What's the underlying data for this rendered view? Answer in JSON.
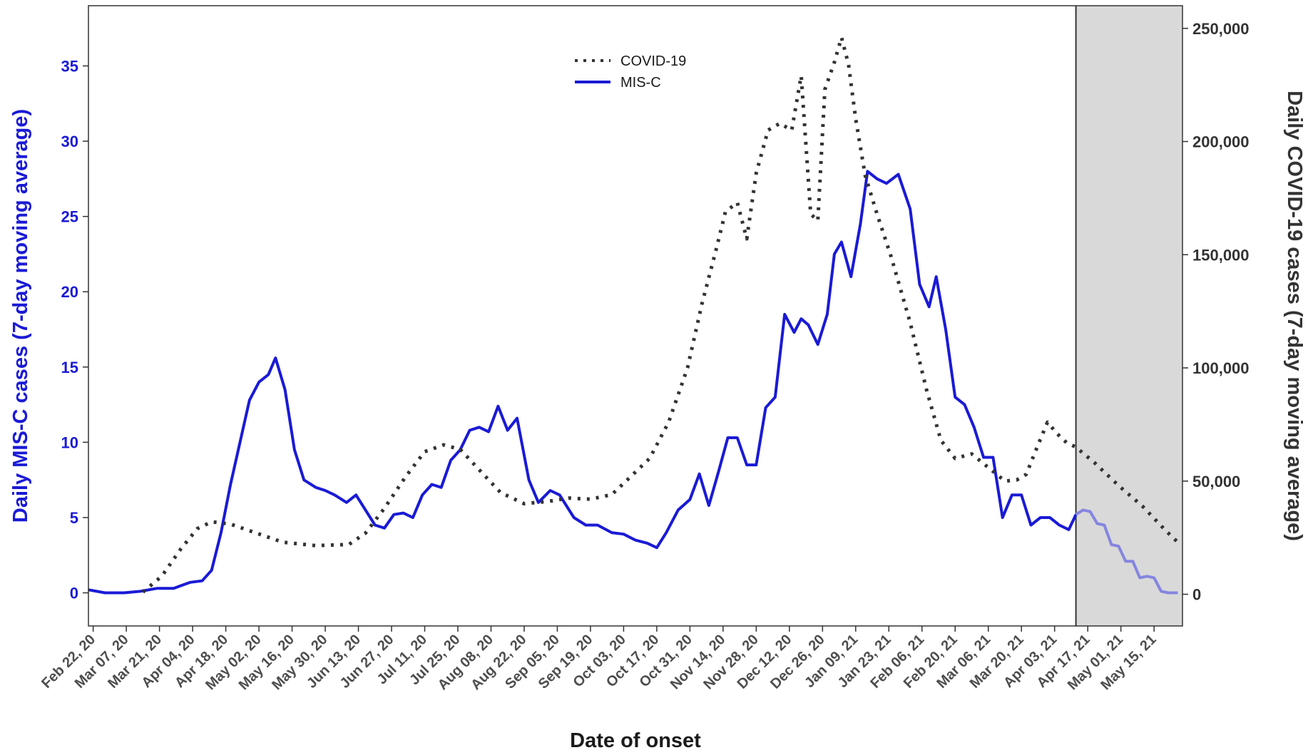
{
  "chart_data": {
    "type": "line",
    "title": "",
    "xlabel": "Date of onset",
    "ylabel_left": "Daily MIS-C cases (7-day moving average)",
    "ylabel_right": "Daily COVID-19 cases (7-day moving average)",
    "ylim_left": [
      -2.2,
      39
    ],
    "ylim_right": [
      -14000,
      260000
    ],
    "left_ticks": [
      "0",
      "5",
      "10",
      "15",
      "20",
      "25",
      "30",
      "35"
    ],
    "left_tick_values": [
      0,
      5,
      10,
      15,
      20,
      25,
      30,
      35
    ],
    "right_ticks": [
      "0",
      "50,000",
      "100,000",
      "150,000",
      "200,000",
      "250,000"
    ],
    "right_tick_values": [
      0,
      50000,
      100000,
      150000,
      200000,
      250000
    ],
    "x_ticks": [
      "Feb 22, 20",
      "Mar 07, 20",
      "Mar 21, 20",
      "Apr 04, 20",
      "Apr 18, 20",
      "May 02, 20",
      "May 16, 20",
      "May 30, 20",
      "Jun 13, 20",
      "Jun 27, 20",
      "Jul 11, 20",
      "Jul 25, 20",
      "Aug 08, 20",
      "Aug 22, 20",
      "Sep 05, 20",
      "Sep 19, 20",
      "Oct 03, 20",
      "Oct 17, 20",
      "Oct 31, 20",
      "Nov 14, 20",
      "Nov 28, 20",
      "Dec 12, 20",
      "Dec 26, 20",
      "Jan 09, 21",
      "Jan 23, 21",
      "Feb 06, 21",
      "Feb 20, 21",
      "Mar 06, 21",
      "Mar 20, 21",
      "Apr 03, 21",
      "Apr 17, 21",
      "May 01, 21",
      "May 15, 21"
    ],
    "x_range": [
      "2020-02-20",
      "2021-05-27"
    ],
    "shaded_region": {
      "from": "2021-04-12",
      "to": "2021-05-27",
      "color": "#d9d9d9"
    },
    "legend": {
      "position": "top-center",
      "entries": [
        "COVID-19",
        "MIS-C"
      ]
    },
    "colors": {
      "mis_c": "#1a1ad6",
      "mis_c_shaded": "#8585e0",
      "covid": "#333333"
    },
    "grid": false,
    "series": [
      {
        "name": "MIS-C",
        "axis": "left",
        "style": "solid",
        "x": [
          "2020-02-20",
          "2020-02-27",
          "2020-03-06",
          "2020-03-13",
          "2020-03-20",
          "2020-03-27",
          "2020-04-03",
          "2020-04-08",
          "2020-04-12",
          "2020-04-16",
          "2020-04-20",
          "2020-04-24",
          "2020-04-28",
          "2020-05-02",
          "2020-05-06",
          "2020-05-09",
          "2020-05-13",
          "2020-05-17",
          "2020-05-21",
          "2020-05-26",
          "2020-05-30",
          "2020-06-03",
          "2020-06-08",
          "2020-06-12",
          "2020-06-16",
          "2020-06-20",
          "2020-06-24",
          "2020-06-28",
          "2020-07-02",
          "2020-07-06",
          "2020-07-10",
          "2020-07-14",
          "2020-07-18",
          "2020-07-22",
          "2020-07-26",
          "2020-07-30",
          "2020-08-03",
          "2020-08-07",
          "2020-08-11",
          "2020-08-15",
          "2020-08-19",
          "2020-08-24",
          "2020-08-28",
          "2020-09-02",
          "2020-09-06",
          "2020-09-12",
          "2020-09-17",
          "2020-09-22",
          "2020-09-28",
          "2020-10-03",
          "2020-10-08",
          "2020-10-13",
          "2020-10-17",
          "2020-10-21",
          "2020-10-26",
          "2020-10-31",
          "2020-11-04",
          "2020-11-08",
          "2020-11-12",
          "2020-11-16",
          "2020-11-20",
          "2020-11-24",
          "2020-11-28",
          "2020-12-02",
          "2020-12-06",
          "2020-12-10",
          "2020-12-14",
          "2020-12-17",
          "2020-12-20",
          "2020-12-24",
          "2020-12-28",
          "2020-12-31",
          "2021-01-03",
          "2021-01-07",
          "2021-01-11",
          "2021-01-14",
          "2021-01-18",
          "2021-01-22",
          "2021-01-27",
          "2021-02-01",
          "2021-02-05",
          "2021-02-09",
          "2021-02-12",
          "2021-02-16",
          "2021-02-20",
          "2021-02-24",
          "2021-02-28",
          "2021-03-04",
          "2021-03-08",
          "2021-03-12",
          "2021-03-16",
          "2021-03-20",
          "2021-03-24",
          "2021-03-28",
          "2021-04-01",
          "2021-04-05",
          "2021-04-09",
          "2021-04-12"
        ],
        "values": [
          0.2,
          0.0,
          0.0,
          0.1,
          0.3,
          0.3,
          0.7,
          0.8,
          1.5,
          4.0,
          7.2,
          10.0,
          12.8,
          14.0,
          14.5,
          15.6,
          13.5,
          9.5,
          7.5,
          7.0,
          6.8,
          6.5,
          6.0,
          6.5,
          5.5,
          4.5,
          4.3,
          5.2,
          5.3,
          5.0,
          6.5,
          7.2,
          7.0,
          8.8,
          9.5,
          10.8,
          11.0,
          10.7,
          12.4,
          10.8,
          11.6,
          7.5,
          6.0,
          6.8,
          6.5,
          5.0,
          4.5,
          4.5,
          4.0,
          3.9,
          3.5,
          3.3,
          3.0,
          4.0,
          5.5,
          6.2,
          7.9,
          5.8,
          8.0,
          10.3,
          10.3,
          8.5,
          8.5,
          12.3,
          13.0,
          18.5,
          17.3,
          18.2,
          17.8,
          16.5,
          18.5,
          22.5,
          23.3,
          21.0,
          24.5,
          28.0,
          27.5,
          27.2,
          27.8,
          25.5,
          20.5,
          19.0,
          21.0,
          17.5,
          13.0,
          12.5,
          11.0,
          9.0,
          9.0,
          5.0,
          6.5,
          6.5,
          4.5,
          5.0,
          5.0,
          4.5,
          4.2,
          5.2
        ]
      },
      {
        "name": "MIS-C",
        "axis": "left",
        "style": "solid-light",
        "x": [
          "2021-04-12",
          "2021-04-15",
          "2021-04-18",
          "2021-04-21",
          "2021-04-24",
          "2021-04-27",
          "2021-04-30",
          "2021-05-03",
          "2021-05-06",
          "2021-05-09",
          "2021-05-12",
          "2021-05-15",
          "2021-05-18",
          "2021-05-21",
          "2021-05-25"
        ],
        "values": [
          5.2,
          5.5,
          5.4,
          4.6,
          4.5,
          3.2,
          3.1,
          2.1,
          2.1,
          1.0,
          1.1,
          1.0,
          0.1,
          0.0,
          0.0
        ]
      },
      {
        "name": "COVID-19",
        "axis": "right",
        "style": "dotted",
        "x": [
          "2020-03-14",
          "2020-03-22",
          "2020-03-30",
          "2020-04-06",
          "2020-04-12",
          "2020-04-20",
          "2020-05-01",
          "2020-05-12",
          "2020-05-26",
          "2020-06-09",
          "2020-06-16",
          "2020-06-24",
          "2020-07-03",
          "2020-07-11",
          "2020-07-19",
          "2020-07-26",
          "2020-08-03",
          "2020-08-12",
          "2020-08-22",
          "2020-09-01",
          "2020-09-10",
          "2020-09-19",
          "2020-09-28",
          "2020-10-06",
          "2020-10-14",
          "2020-10-22",
          "2020-10-30",
          "2020-11-05",
          "2020-11-11",
          "2020-11-15",
          "2020-11-20",
          "2020-11-24",
          "2020-11-28",
          "2020-12-03",
          "2020-12-08",
          "2020-12-13",
          "2020-12-17",
          "2020-12-21",
          "2020-12-24",
          "2020-12-27",
          "2020-12-31",
          "2021-01-03",
          "2021-01-06",
          "2021-01-09",
          "2021-01-13",
          "2021-01-18",
          "2021-01-24",
          "2021-02-01",
          "2021-02-08",
          "2021-02-14",
          "2021-02-20",
          "2021-02-27",
          "2021-03-06",
          "2021-03-13",
          "2021-03-18",
          "2021-03-22",
          "2021-03-27",
          "2021-03-31",
          "2021-04-04",
          "2021-04-08",
          "2021-04-12",
          "2021-04-20",
          "2021-04-30",
          "2021-05-10",
          "2021-05-20",
          "2021-05-26"
        ],
        "values": [
          1000,
          8000,
          20000,
          29000,
          32000,
          31000,
          27000,
          23000,
          21500,
          22000,
          27000,
          38000,
          52000,
          63000,
          66000,
          64000,
          55000,
          45000,
          40000,
          41000,
          42500,
          42000,
          44000,
          52000,
          60000,
          76000,
          100000,
          128000,
          152000,
          169000,
          173000,
          157000,
          186000,
          205000,
          208000,
          205000,
          229000,
          168000,
          165000,
          223000,
          235000,
          246000,
          234000,
          210000,
          185000,
          168000,
          149000,
          120000,
          90000,
          68000,
          60000,
          62000,
          56000,
          50000,
          50500,
          53000,
          66000,
          76000,
          71000,
          67000,
          65000,
          58000,
          48000,
          39000,
          28000,
          22000
        ]
      }
    ]
  }
}
